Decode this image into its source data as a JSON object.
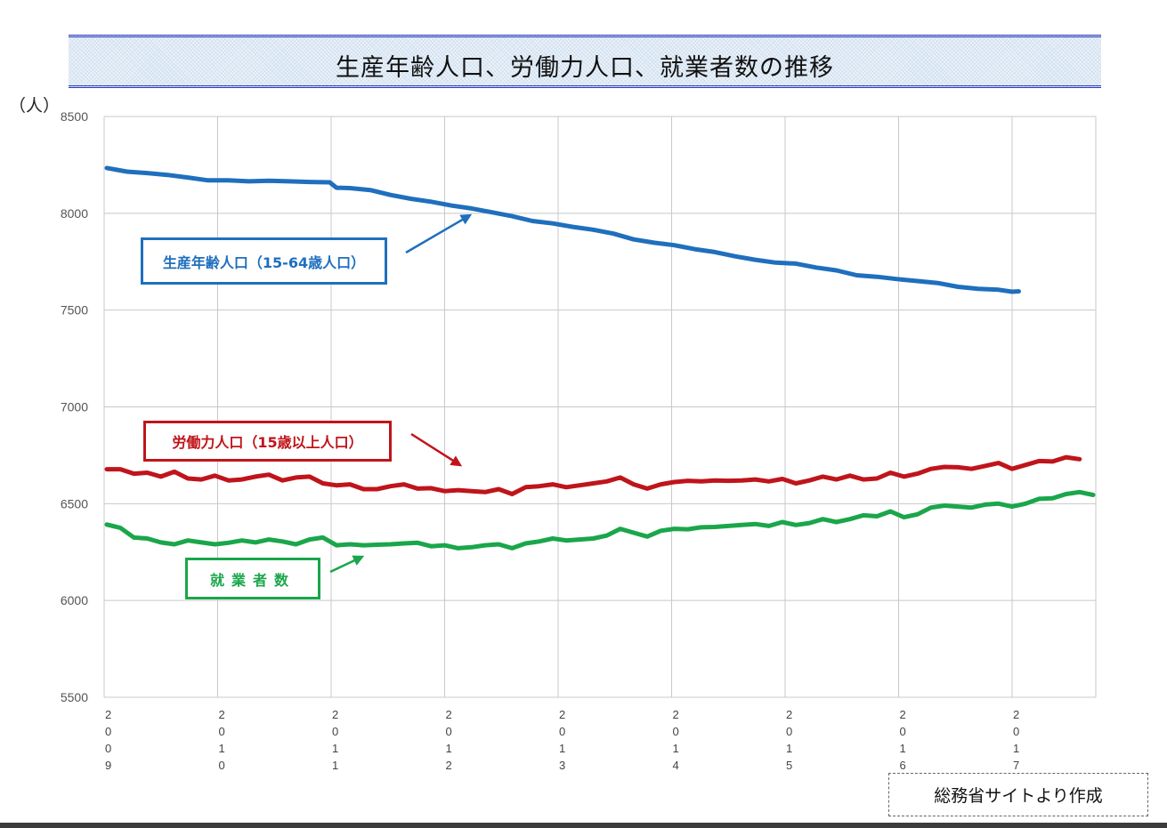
{
  "header": {
    "title": "生産年齢人口、労働力人口、就業者数の推移",
    "unit_label": "（人）"
  },
  "callouts": {
    "working_age": "生産年齢人口（15-64歳人口）",
    "labor_force": "労働力人口（15歳以上人口）",
    "employed": "就業者数"
  },
  "footer": {
    "source_note": "総務省サイトより作成"
  },
  "colors": {
    "working_age": "#1f6fbd",
    "labor_force": "#c0141b",
    "employed": "#1aa64a",
    "grid": "#c8c8c8",
    "title_rule": "#2a36b8"
  },
  "chart_data": {
    "type": "line",
    "title": "生産年齢人口、労働力人口、就業者数の推移",
    "xlabel": "",
    "ylabel": "（人）",
    "ylim": [
      5500,
      8500
    ],
    "yticks": [
      5500,
      6000,
      6500,
      7000,
      7500,
      8000,
      8500
    ],
    "x_tick_labels": [
      "2009",
      "2010",
      "2011",
      "2012",
      "2013",
      "2014",
      "2015",
      "2016",
      "2017"
    ],
    "x_tick_label_style": "vertical-digits",
    "grid": true,
    "legend_position": "inline callouts with arrows",
    "x_unit": "month index from Jan 2009 (0 = 2009-01)",
    "series": [
      {
        "name": "生産年齢人口（15-64歳人口）",
        "color": "#1f6fbd",
        "points": [
          [
            0,
            8234
          ],
          [
            3,
            8215
          ],
          [
            6,
            8208
          ],
          [
            9,
            8198
          ],
          [
            12,
            8185
          ],
          [
            15,
            8170
          ],
          [
            18,
            8170
          ],
          [
            21,
            8165
          ],
          [
            24,
            8168
          ],
          [
            27,
            8165
          ],
          [
            30,
            8162
          ],
          [
            33,
            8160
          ],
          [
            34,
            8132
          ],
          [
            36,
            8130
          ],
          [
            39,
            8120
          ],
          [
            42,
            8095
          ],
          [
            45,
            8075
          ],
          [
            48,
            8060
          ],
          [
            51,
            8040
          ],
          [
            54,
            8025
          ],
          [
            57,
            8005
          ],
          [
            60,
            7985
          ],
          [
            63,
            7960
          ],
          [
            66,
            7948
          ],
          [
            69,
            7930
          ],
          [
            72,
            7915
          ],
          [
            75,
            7895
          ],
          [
            78,
            7865
          ],
          [
            81,
            7848
          ],
          [
            84,
            7835
          ],
          [
            87,
            7815
          ],
          [
            90,
            7800
          ],
          [
            93,
            7778
          ],
          [
            96,
            7760
          ],
          [
            99,
            7745
          ],
          [
            102,
            7740
          ],
          [
            105,
            7720
          ],
          [
            108,
            7705
          ],
          [
            111,
            7680
          ],
          [
            114,
            7672
          ],
          [
            117,
            7660
          ],
          [
            120,
            7650
          ],
          [
            123,
            7640
          ],
          [
            126,
            7620
          ],
          [
            129,
            7610
          ],
          [
            132,
            7605
          ],
          [
            134,
            7595
          ],
          [
            135,
            7597
          ]
        ]
      },
      {
        "name": "労働力人口（15歳以上人口）",
        "color": "#c0141b",
        "points": [
          [
            0,
            6678
          ],
          [
            2,
            6678
          ],
          [
            4,
            6655
          ],
          [
            6,
            6660
          ],
          [
            8,
            6640
          ],
          [
            10,
            6665
          ],
          [
            12,
            6630
          ],
          [
            14,
            6625
          ],
          [
            16,
            6645
          ],
          [
            18,
            6620
          ],
          [
            20,
            6625
          ],
          [
            22,
            6640
          ],
          [
            24,
            6650
          ],
          [
            26,
            6620
          ],
          [
            28,
            6635
          ],
          [
            30,
            6640
          ],
          [
            32,
            6605
          ],
          [
            34,
            6595
          ],
          [
            36,
            6600
          ],
          [
            38,
            6575
          ],
          [
            40,
            6575
          ],
          [
            42,
            6590
          ],
          [
            44,
            6600
          ],
          [
            46,
            6578
          ],
          [
            48,
            6580
          ],
          [
            50,
            6565
          ],
          [
            52,
            6570
          ],
          [
            54,
            6565
          ],
          [
            56,
            6560
          ],
          [
            58,
            6575
          ],
          [
            60,
            6550
          ],
          [
            62,
            6585
          ],
          [
            64,
            6590
          ],
          [
            66,
            6600
          ],
          [
            68,
            6585
          ],
          [
            70,
            6595
          ],
          [
            72,
            6605
          ],
          [
            74,
            6615
          ],
          [
            76,
            6635
          ],
          [
            78,
            6600
          ],
          [
            80,
            6578
          ],
          [
            82,
            6600
          ],
          [
            84,
            6612
          ],
          [
            86,
            6618
          ],
          [
            88,
            6615
          ],
          [
            90,
            6620
          ],
          [
            92,
            6618
          ],
          [
            94,
            6620
          ],
          [
            96,
            6625
          ],
          [
            98,
            6615
          ],
          [
            100,
            6628
          ],
          [
            102,
            6605
          ],
          [
            104,
            6620
          ],
          [
            106,
            6640
          ],
          [
            108,
            6625
          ],
          [
            110,
            6645
          ],
          [
            112,
            6625
          ],
          [
            114,
            6630
          ],
          [
            116,
            6660
          ],
          [
            118,
            6640
          ],
          [
            120,
            6655
          ],
          [
            122,
            6680
          ],
          [
            124,
            6690
          ],
          [
            126,
            6688
          ],
          [
            128,
            6680
          ],
          [
            130,
            6695
          ],
          [
            132,
            6710
          ],
          [
            134,
            6680
          ],
          [
            136,
            6700
          ],
          [
            138,
            6720
          ],
          [
            140,
            6718
          ],
          [
            142,
            6740
          ],
          [
            144,
            6730
          ]
        ]
      },
      {
        "name": "就業者数",
        "color": "#1aa64a",
        "points": [
          [
            0,
            6392
          ],
          [
            2,
            6375
          ],
          [
            4,
            6325
          ],
          [
            6,
            6320
          ],
          [
            8,
            6300
          ],
          [
            10,
            6290
          ],
          [
            12,
            6310
          ],
          [
            14,
            6300
          ],
          [
            16,
            6290
          ],
          [
            18,
            6298
          ],
          [
            20,
            6310
          ],
          [
            22,
            6300
          ],
          [
            24,
            6315
          ],
          [
            26,
            6305
          ],
          [
            28,
            6290
          ],
          [
            30,
            6315
          ],
          [
            32,
            6325
          ],
          [
            34,
            6285
          ],
          [
            36,
            6290
          ],
          [
            38,
            6285
          ],
          [
            40,
            6288
          ],
          [
            42,
            6290
          ],
          [
            44,
            6295
          ],
          [
            46,
            6298
          ],
          [
            48,
            6280
          ],
          [
            50,
            6285
          ],
          [
            52,
            6270
          ],
          [
            54,
            6275
          ],
          [
            56,
            6285
          ],
          [
            58,
            6290
          ],
          [
            60,
            6270
          ],
          [
            62,
            6295
          ],
          [
            64,
            6305
          ],
          [
            66,
            6320
          ],
          [
            68,
            6310
          ],
          [
            70,
            6315
          ],
          [
            72,
            6320
          ],
          [
            74,
            6335
          ],
          [
            76,
            6370
          ],
          [
            78,
            6350
          ],
          [
            80,
            6330
          ],
          [
            82,
            6360
          ],
          [
            84,
            6370
          ],
          [
            86,
            6368
          ],
          [
            88,
            6378
          ],
          [
            90,
            6380
          ],
          [
            92,
            6385
          ],
          [
            94,
            6390
          ],
          [
            96,
            6395
          ],
          [
            98,
            6385
          ],
          [
            100,
            6405
          ],
          [
            102,
            6390
          ],
          [
            104,
            6400
          ],
          [
            106,
            6420
          ],
          [
            108,
            6405
          ],
          [
            110,
            6420
          ],
          [
            112,
            6440
          ],
          [
            114,
            6435
          ],
          [
            116,
            6460
          ],
          [
            118,
            6430
          ],
          [
            120,
            6445
          ],
          [
            122,
            6480
          ],
          [
            124,
            6490
          ],
          [
            126,
            6485
          ],
          [
            128,
            6480
          ],
          [
            130,
            6495
          ],
          [
            132,
            6500
          ],
          [
            134,
            6485
          ],
          [
            136,
            6500
          ],
          [
            138,
            6525
          ],
          [
            140,
            6528
          ],
          [
            142,
            6550
          ],
          [
            144,
            6560
          ],
          [
            146,
            6545
          ]
        ]
      }
    ]
  }
}
